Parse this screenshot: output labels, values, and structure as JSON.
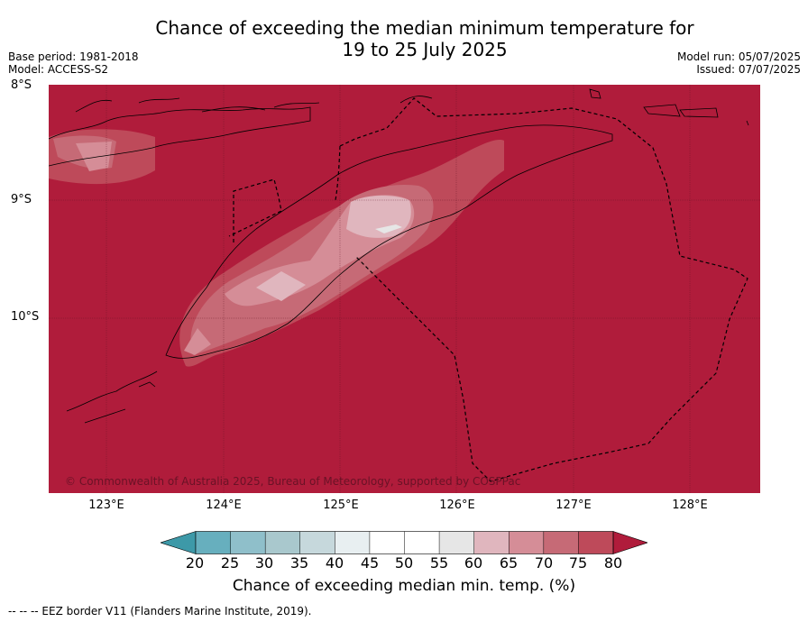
{
  "title_line1": "Chance of exceeding the median minimum temperature for",
  "title_line2": "19 to 25 July 2025",
  "base_period": "Base period: 1981-2018",
  "model": "Model: ACCESS-S2",
  "model_run": "Model run: 05/07/2025",
  "issued": "Issued: 07/07/2025",
  "lat_ticks": [
    "8°S",
    "9°S",
    "10°S"
  ],
  "lon_ticks": [
    "123°E",
    "124°E",
    "125°E",
    "126°E",
    "127°E",
    "128°E"
  ],
  "copyright": "© Commonwealth of Australia 2025, Bureau of Meteorology, supported by COSPPac",
  "colorbar_labels": [
    "20",
    "25",
    "30",
    "35",
    "40",
    "45",
    "50",
    "55",
    "60",
    "65",
    "70",
    "75",
    "80"
  ],
  "colorbar_title": "Chance of exceeding median min. temp. (%)",
  "footnote": "--  --  -- EEZ border V11 (Flanders Marine Institute, 2019).",
  "colors": {
    "bins": [
      "#3d99a8",
      "#67afbe",
      "#8fbfca",
      "#a9c8cd",
      "#c6d8dc",
      "#e8eff1",
      "#ffffff",
      "#ffffff",
      "#e6e6e6",
      "#e0b6be",
      "#d58d97",
      "#c66a76",
      "#be4a5a",
      "#b01c3b"
    ],
    "dominant": "#b01c3b"
  }
}
